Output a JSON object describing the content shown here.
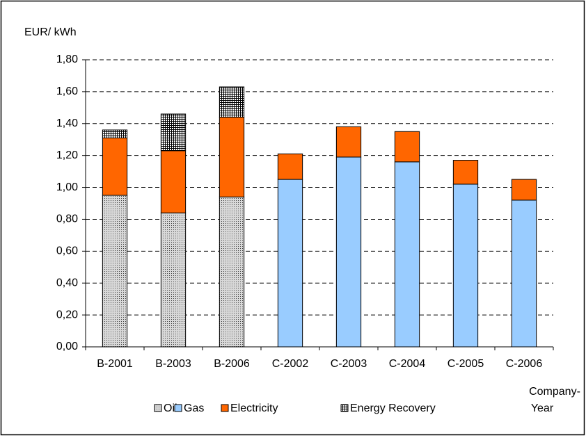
{
  "chart_data": {
    "type": "stacked_bar",
    "y_label": "EUR/ kWh",
    "x_label": [
      "Company-",
      "Year"
    ],
    "categories": [
      "B-2001",
      "B-2003",
      "B-2006",
      "C-2002",
      "C-2003",
      "C-2004",
      "C-2005",
      "C-2006"
    ],
    "series": [
      {
        "name": "Oil",
        "color": "#c0c0c0",
        "pattern": "dots",
        "values": [
          0.95,
          0.84,
          0.94,
          null,
          null,
          null,
          null,
          null
        ]
      },
      {
        "name": "Gas",
        "color": "#99ccff",
        "values": [
          null,
          null,
          null,
          1.05,
          1.19,
          1.16,
          1.02,
          0.92
        ]
      },
      {
        "name": "Electricity",
        "color": "#ff6600",
        "values": [
          0.36,
          0.39,
          0.5,
          0.16,
          0.19,
          0.19,
          0.15,
          0.13
        ]
      },
      {
        "name": "Energy Recovery",
        "color": "#ffffff",
        "pattern": "grid",
        "values": [
          0.05,
          0.23,
          0.19,
          null,
          null,
          null,
          null,
          null
        ]
      }
    ],
    "ylim": [
      0,
      1.8
    ],
    "yticks": [
      {
        "value": 0,
        "label": "0,00"
      },
      {
        "value": 0.2,
        "label": "0,20"
      },
      {
        "value": 0.4,
        "label": "0,40"
      },
      {
        "value": 0.6,
        "label": "0,60"
      },
      {
        "value": 0.8,
        "label": "0,80"
      },
      {
        "value": 1.0,
        "label": "1,00"
      },
      {
        "value": 1.2,
        "label": "1,20"
      },
      {
        "value": 1.4,
        "label": "1,40"
      },
      {
        "value": 1.6,
        "label": "1,60"
      },
      {
        "value": 1.8,
        "label": "1,80"
      }
    ],
    "grid": true
  }
}
